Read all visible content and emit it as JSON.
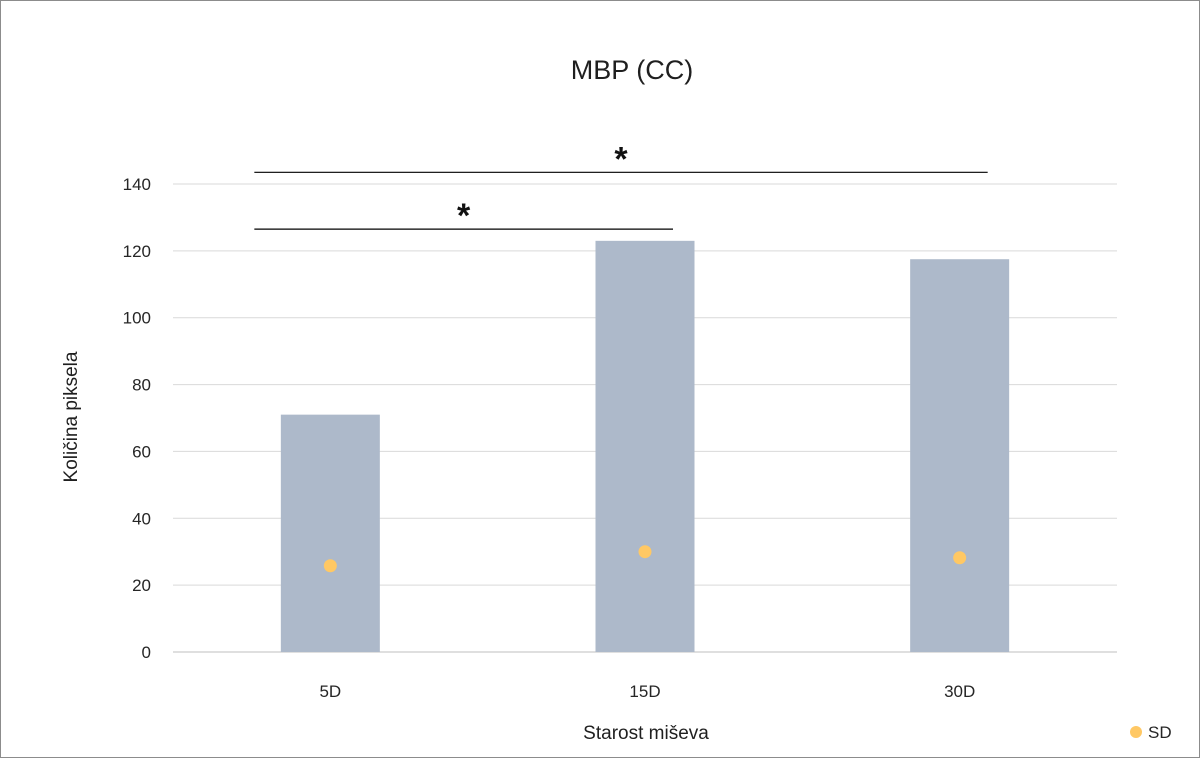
{
  "chart_data": {
    "type": "bar",
    "title": "MBP (CC)",
    "xlabel": "Starost miševa",
    "ylabel": "Količina piksela",
    "categories": [
      "5D",
      "15D",
      "30D"
    ],
    "series": [
      {
        "values": [
          71,
          123,
          117.5
        ],
        "color": "#adb9ca"
      },
      {
        "name": "SD",
        "marker": "dot",
        "values": [
          25.8,
          30,
          28.2
        ],
        "color": "#ffc864"
      }
    ],
    "ylim": [
      0,
      140
    ],
    "yticks": [
      0,
      20,
      40,
      60,
      80,
      100,
      120,
      140
    ],
    "grid": true,
    "legend": {
      "position": "bottom-right",
      "entries": [
        "SD"
      ]
    },
    "annotations": [
      {
        "text": "*",
        "from": "5D",
        "to": "15D",
        "level": 126.5
      },
      {
        "text": "*",
        "from": "5D",
        "to": "30D",
        "level": 143.5
      }
    ]
  }
}
